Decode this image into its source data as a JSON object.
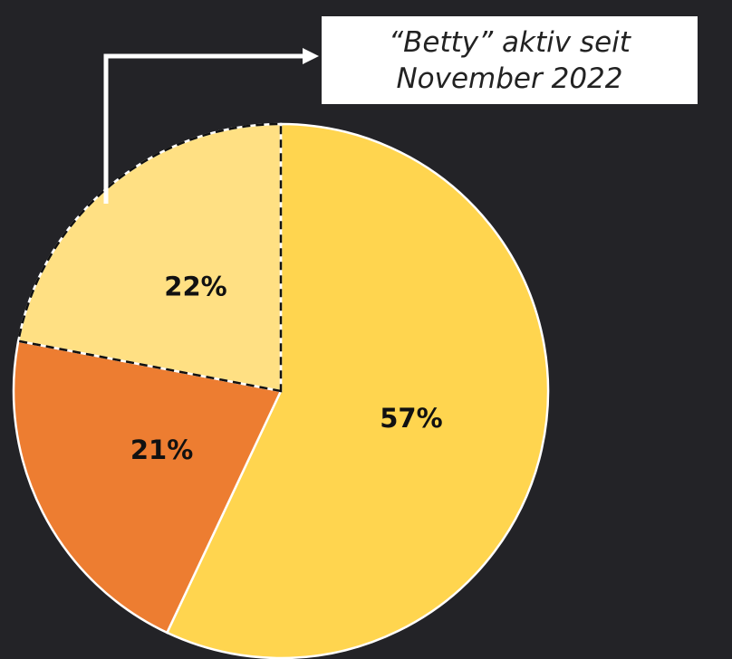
{
  "chart_data": {
    "type": "pie",
    "categories": [
      null,
      null,
      null
    ],
    "values": [
      57,
      21,
      22
    ],
    "value_labels": [
      "57%",
      "21%",
      "22%"
    ],
    "colors": [
      "#ffd54f",
      "#ed7d31",
      "#ffe083"
    ],
    "dashed_slices": [
      2
    ],
    "annotation": "“Betty” aktiv seit November 2022"
  }
}
